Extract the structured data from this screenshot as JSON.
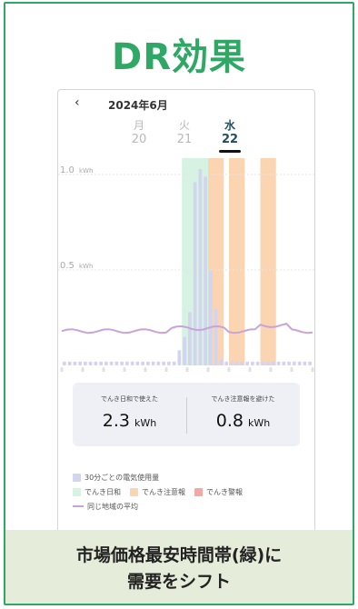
{
  "title": "DR効果",
  "app": {
    "back_icon": "chevron-left-icon",
    "month": "2024年6月",
    "days": [
      {
        "weekday": "月",
        "date": "20",
        "selected": false
      },
      {
        "weekday": "火",
        "date": "21",
        "selected": false
      },
      {
        "weekday": "水",
        "date": "22",
        "selected": true
      }
    ]
  },
  "chart_data": {
    "type": "bar",
    "ytick_labels": [
      "1.0",
      "0.5"
    ],
    "yunit": "kWh",
    "xtick_labels": [
      "0時",
      "6時",
      "12時",
      "18時"
    ],
    "usage_kwh": [
      0.02,
      0.02,
      0.02,
      0.02,
      0.02,
      0.02,
      0.02,
      0.02,
      0.02,
      0.02,
      0.02,
      0.02,
      0.02,
      0.02,
      0.02,
      0.02,
      0.02,
      0.02,
      0.02,
      0.02,
      0.02,
      0.02,
      0.08,
      0.15,
      0.28,
      0.96,
      1.03,
      0.99,
      0.5,
      0.3,
      0.03,
      0.02,
      0.02,
      0.02,
      0.02,
      0.02,
      0.02,
      0.02,
      0.02,
      0.02,
      0.02,
      0.02,
      0.02,
      0.02,
      0.02,
      0.02,
      0.02,
      0.02
    ],
    "cheap_band_hours": [
      11.5,
      14
    ],
    "caution_band_hours": [
      [
        14,
        15.5
      ],
      [
        16,
        17.5
      ],
      [
        19,
        20.5
      ]
    ],
    "average_line_kwh": 0.18,
    "colors": {
      "usage": "#d3d5ee",
      "cheap": "#d5f2e3",
      "caution": "#fbd5b1",
      "alert": "#f3a8a8",
      "average": "#c9a3d8"
    }
  },
  "summary": [
    {
      "label": "でんき日和で使えた",
      "value": "2.3",
      "unit": "kWh"
    },
    {
      "label": "でんき注意報を避けた",
      "value": "0.8",
      "unit": "kWh"
    }
  ],
  "legend": {
    "usage": "30分ごとの電気使用量",
    "cheap": "でんき日和",
    "caution": "でんき注意報",
    "alert": "でんき警報",
    "average": "同じ地域の平均"
  },
  "banner": {
    "line1": "市場価格最安時間帯(緑)に",
    "line2": "需要をシフト"
  }
}
